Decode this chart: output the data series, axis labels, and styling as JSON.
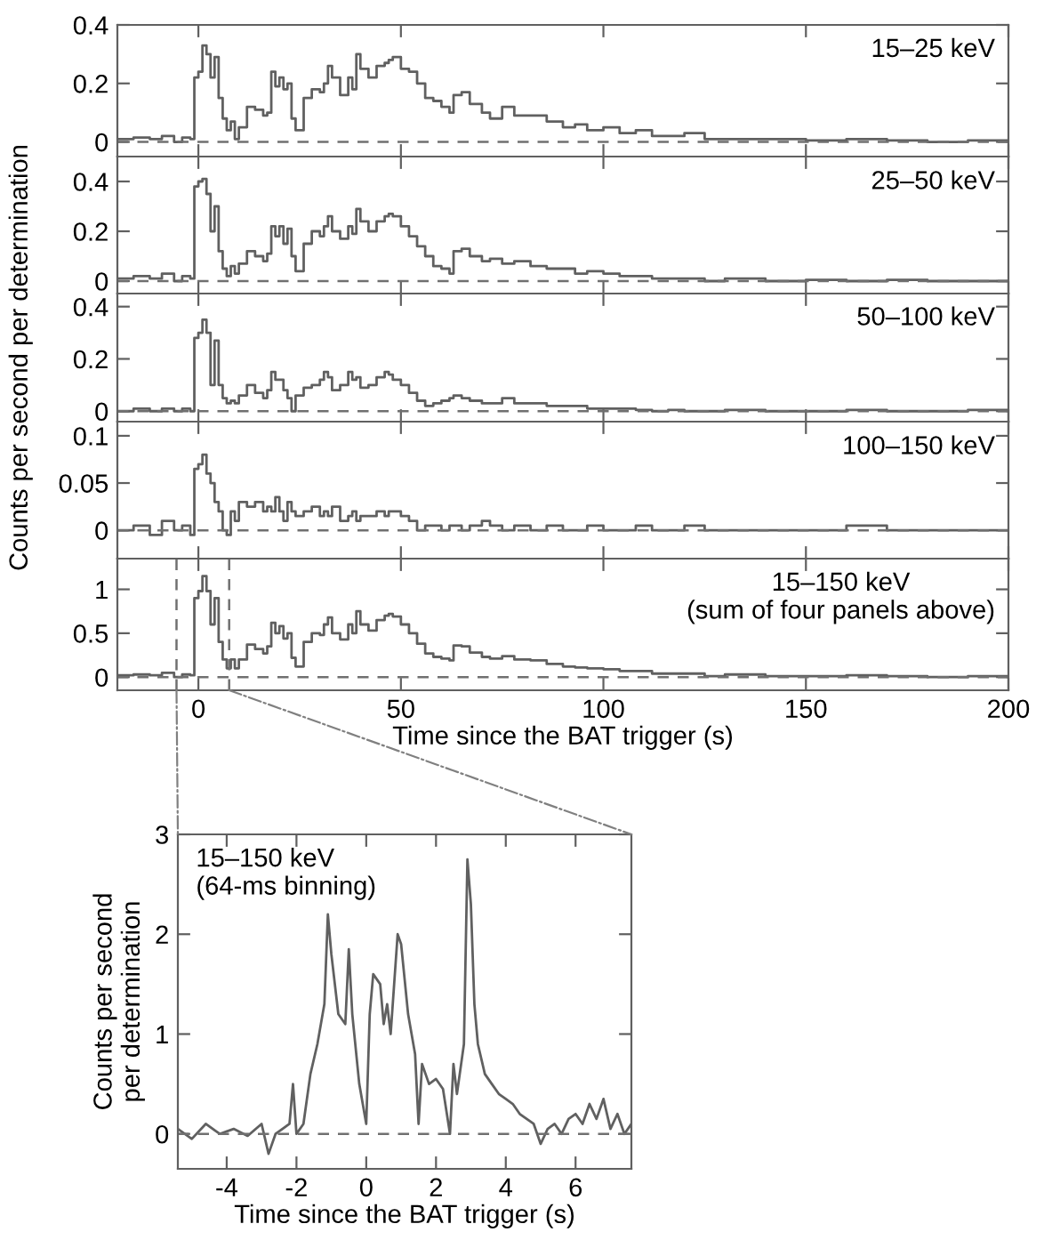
{
  "chart_data": [
    {
      "type": "step",
      "x": [
        -20,
        -16,
        -12,
        -9,
        -6,
        -4,
        -2,
        -1,
        0,
        1,
        2,
        3,
        4,
        5,
        6,
        7,
        8,
        9,
        10,
        12,
        14,
        16,
        17,
        18,
        19,
        20,
        21,
        22,
        23,
        24,
        26,
        28,
        30,
        31,
        32,
        33,
        35,
        37,
        38,
        39,
        40,
        42,
        44,
        46,
        47,
        48,
        50,
        52,
        54,
        56,
        58,
        60,
        62,
        63,
        65,
        67,
        70,
        72,
        75,
        78,
        82,
        86,
        90,
        93,
        96,
        100,
        104,
        108,
        112,
        116,
        120,
        125,
        130,
        140,
        150,
        160,
        170,
        180,
        190,
        200
      ],
      "series": [
        {
          "color": "#606060",
          "values": [
            0.01,
            0.015,
            0.01,
            0.02,
            0.0,
            0.015,
            0.01,
            0.22,
            0.24,
            0.33,
            0.3,
            0.22,
            0.29,
            0.15,
            0.08,
            0.04,
            0.07,
            0.01,
            0.05,
            0.12,
            0.11,
            0.09,
            0.1,
            0.24,
            0.19,
            0.22,
            0.18,
            0.2,
            0.08,
            0.04,
            0.15,
            0.18,
            0.17,
            0.2,
            0.26,
            0.22,
            0.16,
            0.22,
            0.18,
            0.3,
            0.25,
            0.22,
            0.26,
            0.27,
            0.28,
            0.29,
            0.25,
            0.24,
            0.2,
            0.15,
            0.14,
            0.12,
            0.1,
            0.16,
            0.17,
            0.13,
            0.1,
            0.08,
            0.12,
            0.09,
            0.09,
            0.07,
            0.05,
            0.06,
            0.04,
            0.05,
            0.03,
            0.04,
            0.02,
            0.02,
            0.03,
            0.01,
            0.01,
            0.01,
            0.005,
            0.01,
            0.005,
            0.0,
            0.005,
            0.0
          ]
        }
      ],
      "xlim": [
        -20,
        200
      ],
      "xticks": [
        0,
        50,
        100,
        150,
        200
      ],
      "ylim": [
        -0.05,
        0.4
      ],
      "yticks": [
        0,
        0.2,
        0.4
      ],
      "tick_labels": "y",
      "ref_lines": [
        {
          "axis": "y",
          "value": 0,
          "line_style": "dashed"
        }
      ],
      "annotations": [
        "15–25 keV"
      ]
    },
    {
      "type": "step",
      "x": [
        -20,
        -16,
        -12,
        -9,
        -6,
        -4,
        -2,
        -1,
        0,
        1,
        2,
        3,
        4,
        5,
        6,
        7,
        8,
        9,
        10,
        12,
        14,
        16,
        17,
        18,
        19,
        20,
        21,
        22,
        23,
        24,
        26,
        28,
        30,
        31,
        32,
        33,
        35,
        37,
        38,
        39,
        40,
        42,
        44,
        46,
        47,
        48,
        50,
        52,
        54,
        56,
        58,
        60,
        62,
        63,
        65,
        67,
        70,
        72,
        75,
        78,
        82,
        86,
        90,
        93,
        96,
        100,
        104,
        108,
        112,
        116,
        120,
        125,
        130,
        140,
        150,
        160,
        170,
        180,
        190,
        200
      ],
      "series": [
        {
          "color": "#606060",
          "values": [
            0.01,
            0.02,
            0.01,
            0.03,
            0.0,
            0.02,
            0.01,
            0.38,
            0.4,
            0.41,
            0.35,
            0.2,
            0.3,
            0.12,
            0.05,
            0.02,
            0.06,
            0.03,
            0.07,
            0.12,
            0.1,
            0.08,
            0.11,
            0.22,
            0.18,
            0.22,
            0.15,
            0.21,
            0.1,
            0.04,
            0.15,
            0.2,
            0.18,
            0.22,
            0.26,
            0.2,
            0.17,
            0.22,
            0.19,
            0.29,
            0.24,
            0.2,
            0.24,
            0.26,
            0.27,
            0.26,
            0.22,
            0.18,
            0.14,
            0.1,
            0.06,
            0.05,
            0.03,
            0.12,
            0.13,
            0.1,
            0.08,
            0.09,
            0.07,
            0.08,
            0.06,
            0.05,
            0.05,
            0.03,
            0.04,
            0.03,
            0.02,
            0.02,
            0.01,
            0.01,
            0.01,
            0.0,
            0.01,
            0.0,
            0.005,
            0.0,
            0.005,
            0.0,
            0.0,
            0.0
          ]
        }
      ],
      "xlim": [
        -20,
        200
      ],
      "xticks": [
        0,
        50,
        100,
        150,
        200
      ],
      "ylim": [
        -0.05,
        0.5
      ],
      "yticks": [
        0,
        0.2,
        0.4
      ],
      "tick_labels": "y",
      "ref_lines": [
        {
          "axis": "y",
          "value": 0,
          "line_style": "dashed"
        }
      ],
      "annotations": [
        "25–50 keV"
      ]
    },
    {
      "type": "step",
      "x": [
        -20,
        -16,
        -12,
        -9,
        -6,
        -4,
        -2,
        -1,
        0,
        1,
        2,
        3,
        4,
        5,
        6,
        7,
        8,
        9,
        10,
        12,
        14,
        16,
        17,
        18,
        19,
        20,
        21,
        22,
        23,
        24,
        26,
        28,
        30,
        31,
        32,
        33,
        35,
        37,
        38,
        39,
        40,
        42,
        44,
        46,
        47,
        48,
        50,
        52,
        54,
        56,
        58,
        60,
        62,
        63,
        65,
        67,
        70,
        72,
        75,
        78,
        82,
        86,
        90,
        93,
        96,
        100,
        104,
        108,
        112,
        116,
        120,
        125,
        130,
        140,
        150,
        160,
        170,
        180,
        190,
        200
      ],
      "series": [
        {
          "color": "#606060",
          "values": [
            0.0,
            0.01,
            0.0,
            0.01,
            0.0,
            0.01,
            0.0,
            0.28,
            0.3,
            0.35,
            0.3,
            0.1,
            0.27,
            0.1,
            0.05,
            0.03,
            0.04,
            0.03,
            0.06,
            0.1,
            0.07,
            0.05,
            0.08,
            0.15,
            0.12,
            0.12,
            0.08,
            0.05,
            0.0,
            0.06,
            0.09,
            0.1,
            0.12,
            0.15,
            0.13,
            0.08,
            0.1,
            0.15,
            0.12,
            0.13,
            0.09,
            0.1,
            0.13,
            0.15,
            0.14,
            0.12,
            0.1,
            0.07,
            0.04,
            0.02,
            0.03,
            0.04,
            0.05,
            0.06,
            0.05,
            0.04,
            0.03,
            0.03,
            0.05,
            0.03,
            0.03,
            0.02,
            0.02,
            0.02,
            0.01,
            0.01,
            0.01,
            0.005,
            0.0,
            0.005,
            0.0,
            0.0,
            0.005,
            0.0,
            0.0,
            0.005,
            0.0,
            0.0,
            0.005,
            0.0
          ]
        }
      ],
      "xlim": [
        -20,
        200
      ],
      "xticks": [
        0,
        50,
        100,
        150,
        200
      ],
      "ylim": [
        -0.04,
        0.45
      ],
      "yticks": [
        0,
        0.2,
        0.4
      ],
      "tick_labels": "y",
      "ylabel": "Counts per second per determination",
      "ref_lines": [
        {
          "axis": "y",
          "value": 0,
          "line_style": "dashed"
        }
      ],
      "annotations": [
        "50–100 keV"
      ]
    },
    {
      "type": "step",
      "x": [
        -20,
        -16,
        -12,
        -9,
        -6,
        -4,
        -2,
        -1,
        0,
        1,
        2,
        3,
        4,
        5,
        6,
        7,
        8,
        9,
        10,
        12,
        14,
        16,
        17,
        18,
        19,
        20,
        21,
        22,
        23,
        24,
        26,
        28,
        30,
        31,
        32,
        33,
        35,
        37,
        38,
        39,
        40,
        42,
        44,
        46,
        47,
        48,
        50,
        52,
        54,
        56,
        58,
        60,
        62,
        63,
        65,
        67,
        70,
        72,
        75,
        78,
        82,
        86,
        90,
        93,
        96,
        100,
        104,
        108,
        112,
        116,
        120,
        125,
        130,
        140,
        150,
        160,
        170,
        180,
        190,
        200
      ],
      "series": [
        {
          "color": "#606060",
          "values": [
            0.0,
            0.005,
            -0.005,
            0.01,
            0.0,
            0.005,
            -0.005,
            0.065,
            0.07,
            0.08,
            0.06,
            0.05,
            0.03,
            0.02,
            0.0,
            -0.005,
            0.02,
            0.01,
            0.03,
            0.025,
            0.03,
            0.02,
            0.025,
            0.02,
            0.035,
            0.02,
            0.01,
            0.03,
            0.02,
            0.015,
            0.02,
            0.025,
            0.015,
            0.02,
            0.015,
            0.025,
            0.01,
            0.015,
            0.02,
            0.01,
            0.015,
            0.015,
            0.02,
            0.015,
            0.02,
            0.02,
            0.015,
            0.01,
            0.0,
            0.005,
            0.005,
            0.0,
            0.005,
            0.005,
            0.0,
            0.005,
            0.01,
            0.005,
            0.0,
            0.005,
            0.0,
            0.005,
            0.0,
            0.0,
            0.005,
            0.0,
            0.0,
            0.005,
            0.0,
            0.0,
            0.005,
            0.0,
            0.0,
            0.0,
            0.0,
            0.005,
            0.0,
            0.0,
            0.0,
            0.0
          ]
        }
      ],
      "xlim": [
        -20,
        200
      ],
      "xticks": [
        0,
        50,
        100,
        150,
        200
      ],
      "ylim": [
        -0.03,
        0.115
      ],
      "yticks": [
        0,
        0.05,
        0.1
      ],
      "tick_labels": "y",
      "ref_lines": [
        {
          "axis": "y",
          "value": 0,
          "line_style": "dashed"
        }
      ],
      "annotations": [
        "100–150 keV"
      ]
    },
    {
      "type": "step",
      "x": [
        -20,
        -16,
        -12,
        -9,
        -6,
        -4,
        -2,
        -1,
        0,
        1,
        2,
        3,
        4,
        5,
        6,
        7,
        8,
        9,
        10,
        12,
        14,
        16,
        17,
        18,
        19,
        20,
        21,
        22,
        23,
        24,
        26,
        28,
        30,
        31,
        32,
        33,
        35,
        37,
        38,
        39,
        40,
        42,
        44,
        46,
        47,
        48,
        50,
        52,
        54,
        56,
        58,
        60,
        62,
        63,
        65,
        67,
        70,
        72,
        75,
        78,
        82,
        86,
        90,
        93,
        96,
        100,
        104,
        108,
        112,
        116,
        120,
        125,
        130,
        140,
        150,
        160,
        170,
        180,
        190,
        200
      ],
      "series": [
        {
          "color": "#606060",
          "values": [
            0.02,
            0.03,
            0.02,
            0.05,
            0.0,
            0.03,
            0.02,
            0.9,
            0.98,
            1.15,
            0.98,
            0.6,
            0.9,
            0.4,
            0.2,
            0.1,
            0.2,
            0.1,
            0.2,
            0.37,
            0.32,
            0.27,
            0.35,
            0.62,
            0.5,
            0.58,
            0.44,
            0.5,
            0.22,
            0.12,
            0.4,
            0.5,
            0.48,
            0.6,
            0.68,
            0.5,
            0.43,
            0.6,
            0.5,
            0.75,
            0.6,
            0.53,
            0.65,
            0.7,
            0.72,
            0.69,
            0.6,
            0.5,
            0.38,
            0.27,
            0.23,
            0.21,
            0.19,
            0.36,
            0.35,
            0.28,
            0.23,
            0.21,
            0.24,
            0.2,
            0.19,
            0.15,
            0.12,
            0.11,
            0.1,
            0.09,
            0.07,
            0.07,
            0.04,
            0.04,
            0.04,
            0.01,
            0.03,
            0.01,
            0.01,
            0.02,
            0.01,
            0.0,
            0.01,
            0.0
          ]
        }
      ],
      "xlim": [
        -20,
        200
      ],
      "xticks": [
        0,
        50,
        100,
        150,
        200
      ],
      "ylim": [
        -0.15,
        1.35
      ],
      "yticks": [
        0,
        0.5,
        1
      ],
      "xlabel": "Time since the BAT trigger (s)",
      "ref_lines": [
        {
          "axis": "y",
          "value": 0,
          "line_style": "dashed"
        },
        {
          "axis": "x",
          "value": -5.4,
          "line_style": "dashed"
        },
        {
          "axis": "x",
          "value": 7.6,
          "line_style": "dashed"
        }
      ],
      "annotations": [
        "15–150 keV\n(sum of four panels above)"
      ]
    },
    {
      "type": "line",
      "x": [
        -5.4,
        -5.0,
        -4.6,
        -4.2,
        -3.8,
        -3.4,
        -3.0,
        -2.8,
        -2.6,
        -2.2,
        -2.1,
        -2.0,
        -1.8,
        -1.6,
        -1.4,
        -1.2,
        -1.1,
        -1.0,
        -0.8,
        -0.6,
        -0.5,
        -0.4,
        -0.2,
        0.0,
        0.1,
        0.2,
        0.4,
        0.5,
        0.6,
        0.7,
        0.8,
        0.9,
        1.0,
        1.2,
        1.4,
        1.5,
        1.6,
        1.8,
        2.0,
        2.2,
        2.4,
        2.5,
        2.6,
        2.8,
        2.9,
        3.0,
        3.1,
        3.2,
        3.4,
        3.6,
        3.8,
        4.0,
        4.2,
        4.4,
        4.6,
        4.8,
        5.0,
        5.2,
        5.4,
        5.6,
        5.8,
        6.0,
        6.2,
        6.4,
        6.6,
        6.8,
        7.0,
        7.2,
        7.4,
        7.6
      ],
      "series": [
        {
          "color": "#606060",
          "values": [
            0.05,
            -0.05,
            0.1,
            0.0,
            0.05,
            -0.02,
            0.1,
            -0.2,
            0.0,
            0.1,
            0.5,
            0.0,
            0.1,
            0.6,
            0.9,
            1.3,
            2.2,
            1.8,
            1.2,
            1.1,
            1.85,
            1.2,
            0.5,
            0.1,
            1.2,
            1.6,
            1.5,
            1.1,
            1.3,
            1.0,
            1.5,
            2.0,
            1.9,
            1.2,
            0.8,
            0.1,
            0.7,
            0.5,
            0.55,
            0.45,
            0.0,
            0.7,
            0.4,
            0.9,
            2.75,
            2.3,
            1.3,
            0.9,
            0.6,
            0.5,
            0.4,
            0.35,
            0.3,
            0.2,
            0.15,
            0.1,
            -0.1,
            0.05,
            0.1,
            0.0,
            0.15,
            0.2,
            0.1,
            0.3,
            0.15,
            0.35,
            0.05,
            0.2,
            0.0,
            0.1
          ]
        }
      ],
      "xlim": [
        -5.4,
        7.6
      ],
      "xticks": [
        -4,
        -2,
        0,
        2,
        4,
        6
      ],
      "ylim": [
        -0.35,
        3
      ],
      "yticks": [
        0,
        1,
        2,
        3
      ],
      "xlabel": "Time since the BAT trigger (s)",
      "ylabel": "Counts per second\nper determination",
      "ref_lines": [
        {
          "axis": "y",
          "value": 0,
          "line_style": "dashed"
        }
      ],
      "annotations": [
        "15–150 keV\n(64-ms binning)"
      ]
    }
  ]
}
